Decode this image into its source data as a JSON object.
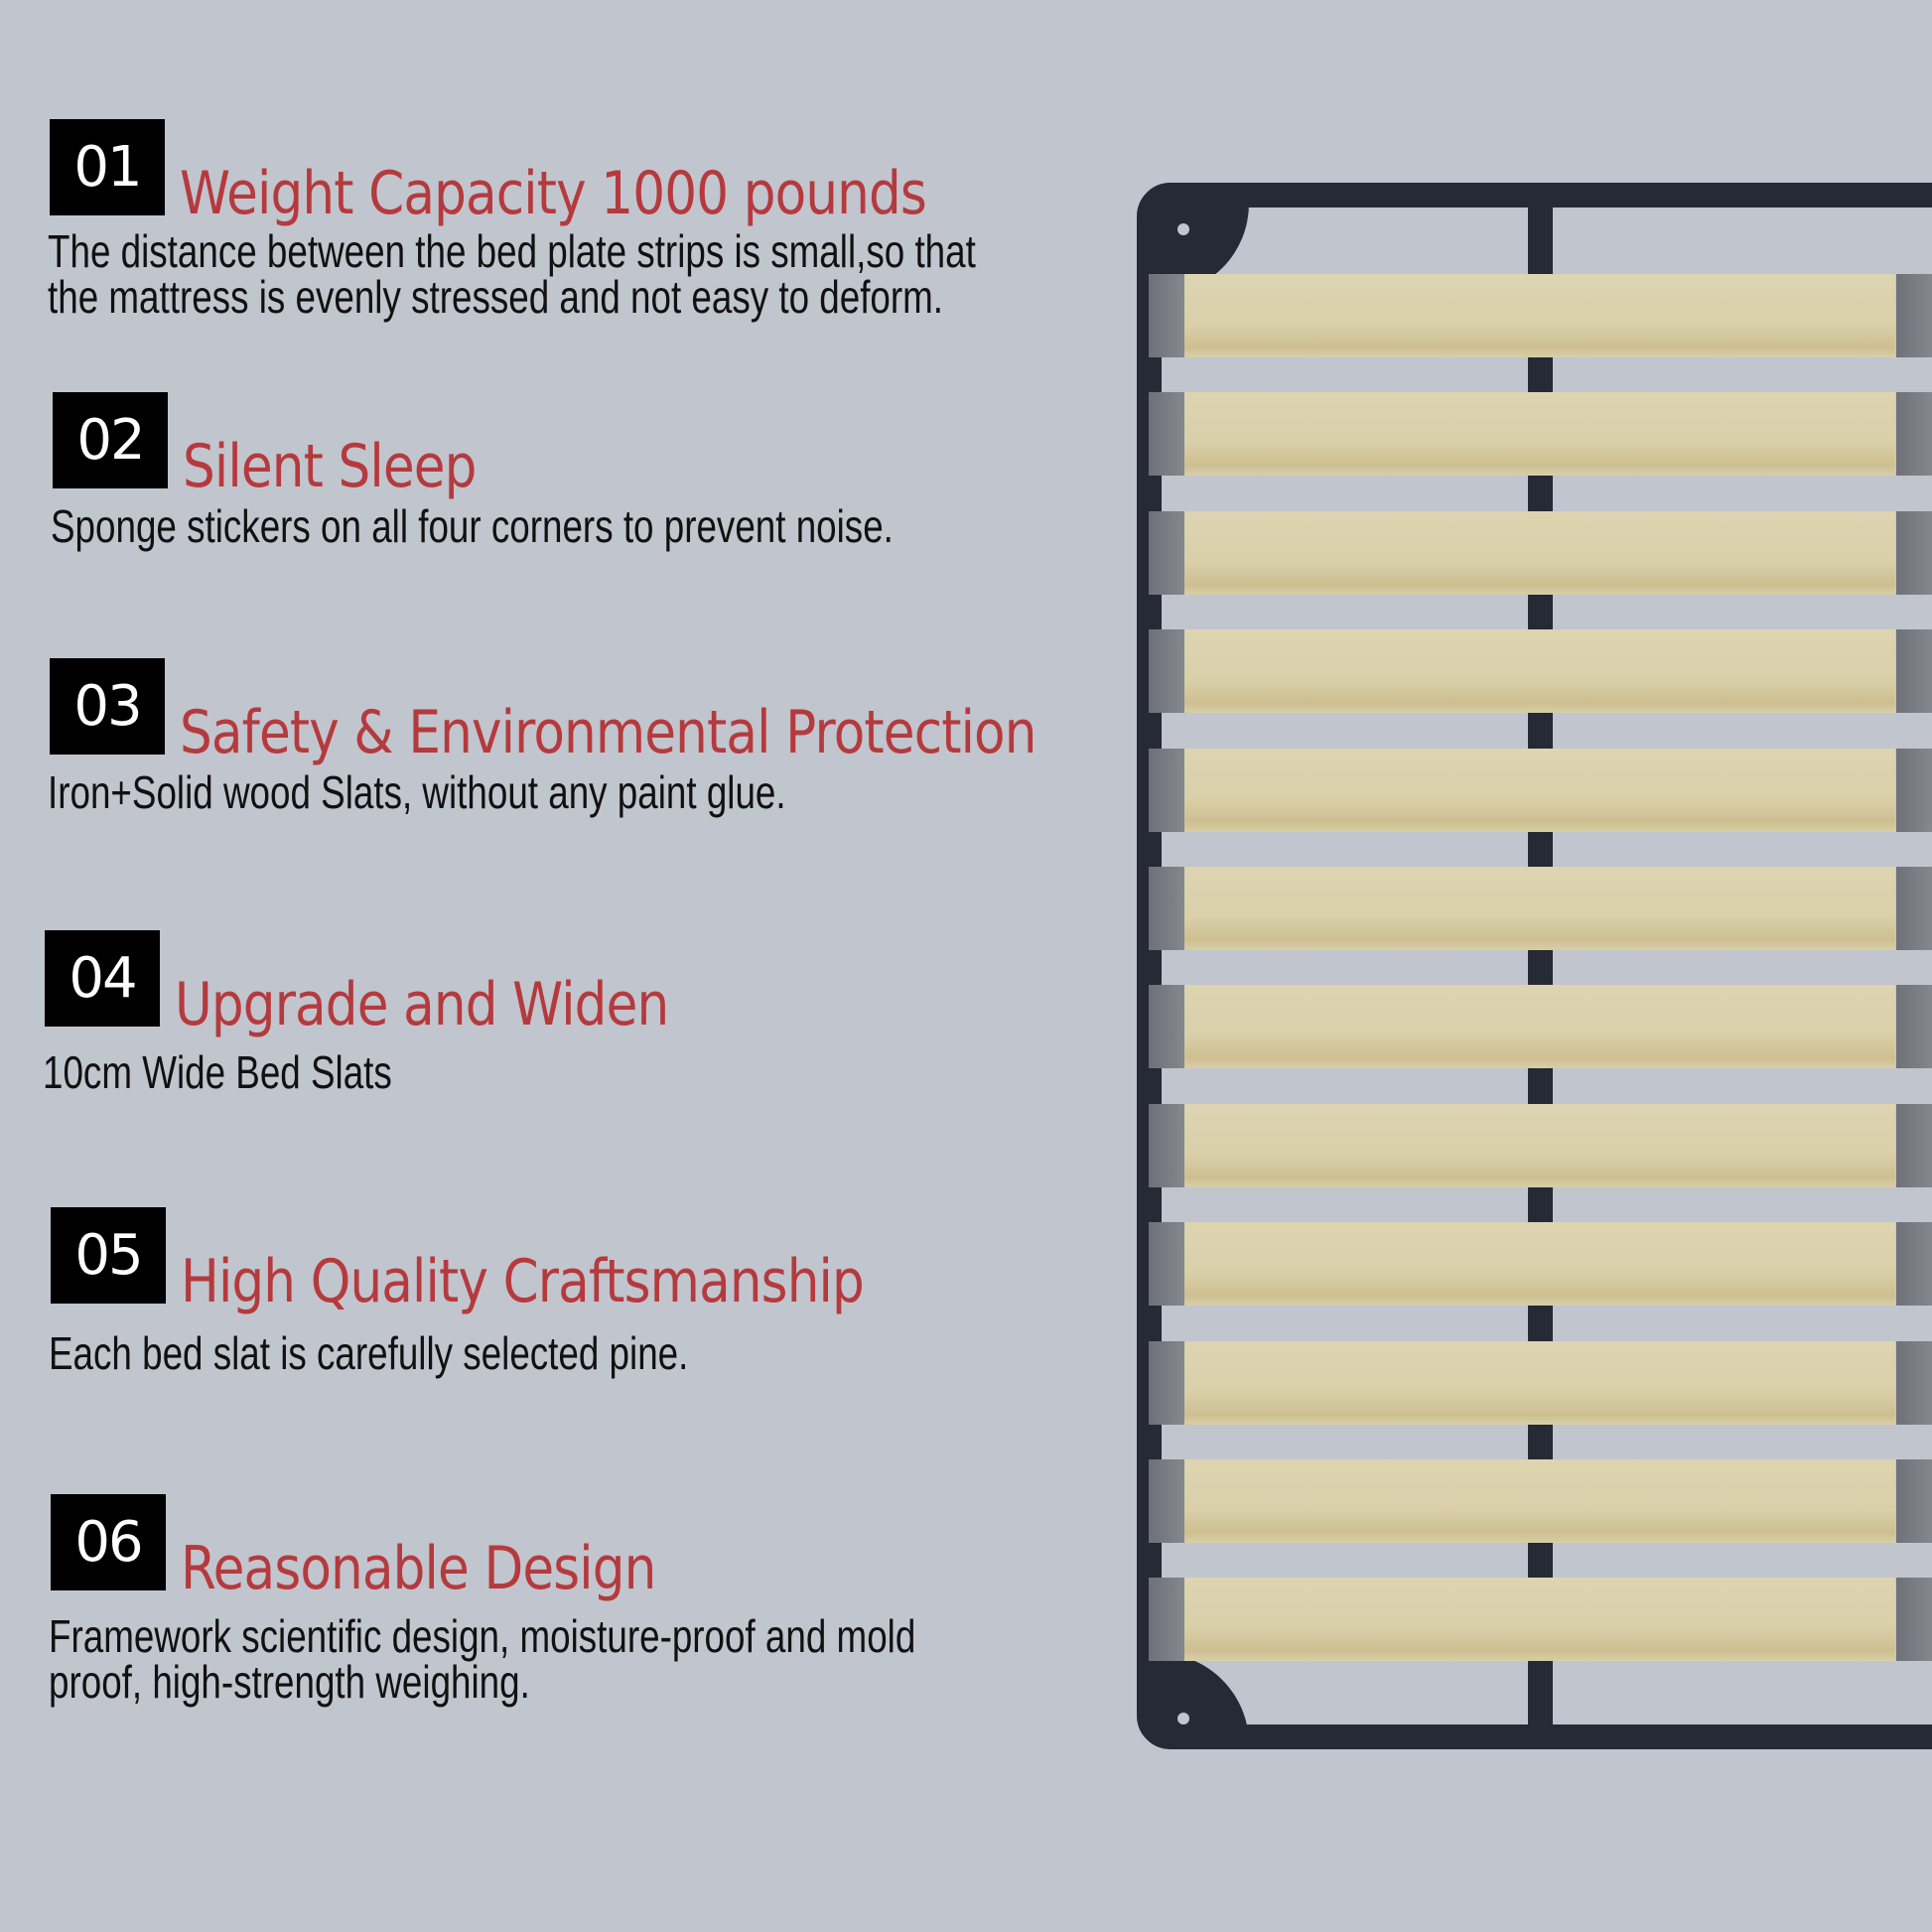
{
  "features": [
    {
      "number": "01",
      "title": "Weight Capacity 1000 pounds",
      "body": "The distance between the bed plate strips is small,so that\nthe mattress is evenly stressed and not easy to deform."
    },
    {
      "number": "02",
      "title": "Silent Sleep",
      "body": "Sponge stickers on all four corners to prevent noise."
    },
    {
      "number": "03",
      "title": "Safety & Environmental Protection",
      "body": "Iron+Solid wood Slats, without any paint glue."
    },
    {
      "number": "04",
      "title": "Upgrade and Widen",
      "body": "10cm Wide Bed Slats"
    },
    {
      "number": "05",
      "title": "High Quality Craftsmanship",
      "body": "Each bed slat is carefully selected pine."
    },
    {
      "number": "06",
      "title": "Reasonable Design",
      "body": "Framework scientific design, moisture-proof and mold\nproof, high-strength weighing."
    }
  ],
  "colors": {
    "background": "#c1c5ce",
    "title": "#b53a3d",
    "badge": "#000000",
    "frame": "#262a35",
    "slat": "#d9cfa9"
  },
  "bed_frame": {
    "slat_count": 12
  }
}
